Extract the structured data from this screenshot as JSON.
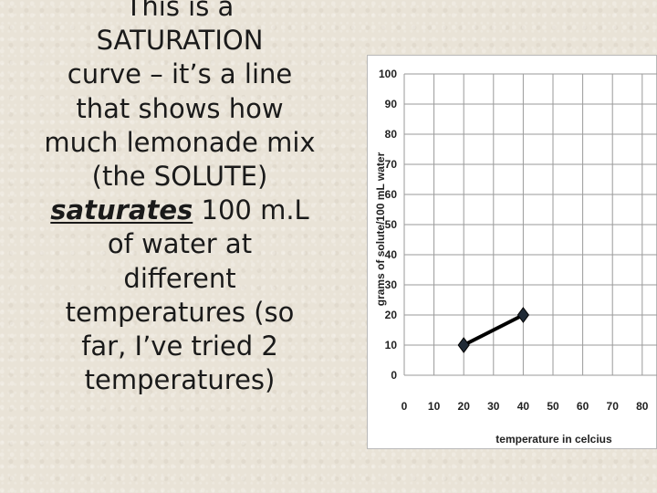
{
  "slide": {
    "lines": [
      "This is a",
      "SATURATION",
      "curve – it’s a line",
      "that shows how",
      "much lemonade mix",
      "(the SOLUTE)"
    ],
    "saturates_word": "saturates",
    "saturates_rest": " 100 m.L",
    "lines_after": [
      "of water at",
      "different",
      "temperatures (so",
      "far, I’ve tried 2",
      "temperatures)"
    ]
  },
  "chart_data": {
    "type": "line",
    "title": "",
    "xlabel": "temperature in celcius",
    "ylabel": "grams of solute/100 mL water",
    "xlim": [
      0,
      80
    ],
    "ylim": [
      0,
      100
    ],
    "x_ticks": [
      "0",
      "10",
      "20",
      "30",
      "40",
      "50",
      "60",
      "70",
      "80"
    ],
    "y_ticks": [
      "0",
      "10",
      "20",
      "30",
      "40",
      "50",
      "60",
      "70",
      "80",
      "90",
      "100"
    ],
    "grid": true,
    "series": [
      {
        "x": [
          20,
          40
        ],
        "y": [
          10,
          20
        ],
        "color": "#000000",
        "marker": "diamond"
      }
    ]
  }
}
